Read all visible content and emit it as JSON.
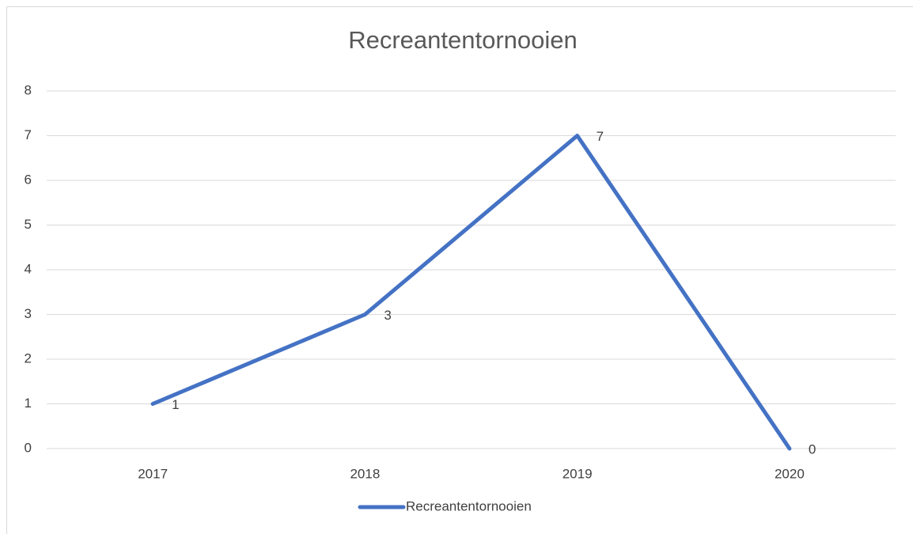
{
  "chart_data": {
    "type": "line",
    "title": "Recreantentornooien",
    "categories": [
      "2017",
      "2018",
      "2019",
      "2020"
    ],
    "series": [
      {
        "name": "Recreantentornooien",
        "color": "#4472c4",
        "values": [
          1,
          3,
          7,
          0
        ]
      }
    ],
    "ylim": [
      0,
      8
    ],
    "yticks": [
      0,
      1,
      2,
      3,
      4,
      5,
      6,
      7,
      8
    ],
    "grid": true,
    "legend": "bottom"
  }
}
